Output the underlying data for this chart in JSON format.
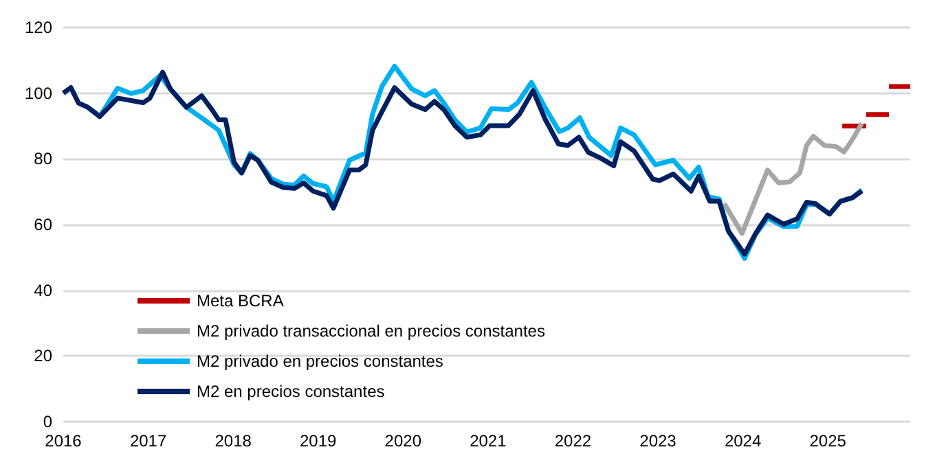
{
  "chart_data": {
    "type": "line",
    "xlim": [
      2016,
      2025.97
    ],
    "xticks": [
      2016,
      2017,
      2018,
      2019,
      2020,
      2021,
      2022,
      2023,
      2024,
      2025
    ],
    "ylim": [
      0,
      120
    ],
    "yticks": [
      0,
      20,
      40,
      60,
      80,
      100,
      120
    ],
    "grid": "y",
    "legend": "bottom left",
    "marker": "none",
    "line_style": "solid",
    "series": [
      {
        "name": "Meta BCRA",
        "color": "#c00000",
        "x": [
          2025.17,
          2025.45,
          2025.45,
          2025.72,
          2025.72,
          2025.97
        ],
        "values": [
          90,
          90,
          93.5,
          93.5,
          102,
          102
        ]
      },
      {
        "name": "M2 privado transaccional en precios constantes",
        "color": "#a6a6a6",
        "x": [
          2023.78,
          2023.99,
          2024.29,
          2024.42,
          2024.55,
          2024.67,
          2024.75,
          2024.83,
          2024.96,
          2025.1,
          2025.19,
          2025.29,
          2025.4
        ],
        "values": [
          66.4,
          57.3,
          76.6,
          72.7,
          73,
          75.7,
          84.1,
          86.9,
          84.1,
          83.7,
          82.1,
          85.9,
          90.8
        ]
      },
      {
        "name": "M2 privado en precios constantes",
        "color": "#00b0f0",
        "x": [
          2016.29,
          2016.43,
          2016.64,
          2016.8,
          2016.94,
          2017.14,
          2017.26,
          2017.45,
          2017.66,
          2017.83,
          2018.01,
          2018.1,
          2018.2,
          2018.29,
          2018.45,
          2018.59,
          2018.72,
          2018.83,
          2018.94,
          2019.1,
          2019.18,
          2019.37,
          2019.56,
          2019.64,
          2019.75,
          2019.9,
          2020.1,
          2020.26,
          2020.37,
          2020.48,
          2020.61,
          2020.75,
          2020.91,
          2021.04,
          2021.24,
          2021.35,
          2021.51,
          2021.67,
          2021.84,
          2021.94,
          2022.08,
          2022.19,
          2022.45,
          2022.56,
          2022.72,
          2022.97,
          2023.18,
          2023.37,
          2023.48,
          2023.59,
          2023.72,
          2023.83,
          2024.02,
          2024.15,
          2024.29,
          2024.48,
          2024.64,
          2024.75,
          2024.85,
          2025.02,
          2025.15,
          2025.29,
          2025.4
        ],
        "values": [
          95.7,
          92.9,
          101.5,
          99.9,
          100.8,
          105.4,
          101.3,
          95.7,
          91.9,
          88.7,
          78.2,
          75.7,
          81.6,
          79.6,
          74,
          72.3,
          72,
          74.8,
          72.5,
          71.5,
          67,
          79.6,
          81.8,
          93.6,
          102,
          108.2,
          101.3,
          99.2,
          100.8,
          97,
          91.9,
          88.2,
          89.4,
          95.3,
          95,
          97.1,
          103.3,
          95.7,
          88.3,
          89.4,
          92.5,
          86.6,
          81,
          89.4,
          87.3,
          78.2,
          79.6,
          74.1,
          77.5,
          68.5,
          67.8,
          58,
          49.7,
          57,
          62,
          59.4,
          59.5,
          66,
          66.4,
          63.2,
          67.1,
          68.2,
          70.5
        ]
      },
      {
        "name": "M2 en precios constantes",
        "color": "#002060",
        "x": [
          2016,
          2016.09,
          2016.18,
          2016.29,
          2016.43,
          2016.64,
          2016.94,
          2017.02,
          2017.17,
          2017.26,
          2017.45,
          2017.63,
          2017.75,
          2017.83,
          2017.91,
          2018.01,
          2018.1,
          2018.2,
          2018.29,
          2018.45,
          2018.59,
          2018.72,
          2018.83,
          2018.94,
          2019.1,
          2019.18,
          2019.37,
          2019.48,
          2019.56,
          2019.64,
          2019.75,
          2019.9,
          2020.1,
          2020.26,
          2020.37,
          2020.48,
          2020.61,
          2020.75,
          2020.91,
          2021.02,
          2021.24,
          2021.37,
          2021.53,
          2021.67,
          2021.83,
          2021.94,
          2022.07,
          2022.18,
          2022.32,
          2022.48,
          2022.56,
          2022.72,
          2022.94,
          2023.02,
          2023.18,
          2023.39,
          2023.48,
          2023.61,
          2023.72,
          2023.83,
          2024.02,
          2024.15,
          2024.29,
          2024.48,
          2024.64,
          2024.75,
          2024.85,
          2025.02,
          2025.15,
          2025.29,
          2025.4
        ],
        "values": [
          100,
          101.7,
          97,
          95.7,
          92.9,
          98.5,
          97.1,
          98.5,
          106.4,
          101.3,
          95.7,
          99.2,
          95,
          91.9,
          91.9,
          79,
          75.7,
          81,
          79.6,
          72.9,
          71.3,
          71,
          72.7,
          70.2,
          68.8,
          65,
          76.6,
          76.6,
          78.2,
          88.7,
          94.3,
          101.7,
          96.7,
          95,
          97.5,
          95,
          90.1,
          86.6,
          87.3,
          90.1,
          90.1,
          93.6,
          100.8,
          92.2,
          84.5,
          84.1,
          86.6,
          82,
          80.3,
          77.9,
          85.2,
          82.4,
          73.8,
          73.4,
          75.4,
          70.2,
          74.8,
          67.1,
          67.1,
          58,
          51,
          57.3,
          62.9,
          60.1,
          61.8,
          66.8,
          66.4,
          63.2,
          67.1,
          68.2,
          70.2
        ]
      }
    ]
  }
}
